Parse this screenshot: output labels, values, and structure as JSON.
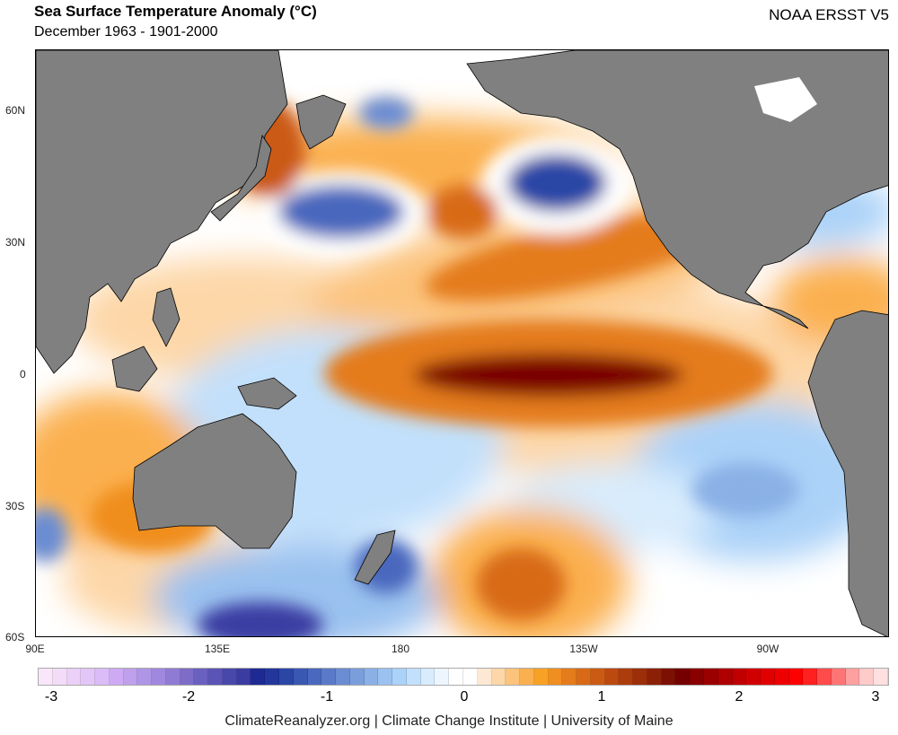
{
  "header": {
    "title": "Sea Surface Temperature Anomaly (°C)",
    "subtitle": "December 1963 - 1901-2000",
    "dataset": "NOAA ERSST V5"
  },
  "map": {
    "lat_labels": [
      "60N",
      "30N",
      "0",
      "30S",
      "60S"
    ],
    "lon_labels": [
      "90E",
      "135E",
      "180",
      "135W",
      "90W"
    ],
    "land_color": "#808080"
  },
  "colorbar": {
    "min": -3,
    "max": 3,
    "step": 0.1,
    "tick_labels": [
      "-3",
      "-2",
      "-1",
      "0",
      "1",
      "2",
      "3"
    ],
    "colors": [
      "#f9e6fa",
      "#f3dcf8",
      "#ebd0f7",
      "#e3c6f8",
      "#dbbcf7",
      "#cfaaf4",
      "#bea0ec",
      "#ae95e6",
      "#9f88dd",
      "#8f7bd4",
      "#7d6dc8",
      "#6a60bf",
      "#5a54b6",
      "#4848ab",
      "#3a3ca2",
      "#1e2a94",
      "#22369b",
      "#2c46a6",
      "#3a57b2",
      "#4a68bd",
      "#5a7ac8",
      "#6a8cd2",
      "#7a9edc",
      "#8ab0e6",
      "#9ac1ef",
      "#abd2f8",
      "#c2e0fb",
      "#d8ecfd",
      "#edf6ff",
      "#ffffff",
      "#ffffff",
      "#fde9d3",
      "#fdd7a8",
      "#fcc37d",
      "#fbb050",
      "#f9a124",
      "#f08e1f",
      "#e47c1b",
      "#d86a17",
      "#cb5a13",
      "#bc4a10",
      "#ac3c0c",
      "#9c2e09",
      "#8c2006",
      "#7c1003",
      "#750000",
      "#880000",
      "#9b0000",
      "#ae0000",
      "#c00000",
      "#d10000",
      "#e00000",
      "#ee0000",
      "#ff0000",
      "#ff2020",
      "#ff4b4b",
      "#ff7575",
      "#ffa0a0",
      "#ffcaca",
      "#ffe0e0"
    ]
  },
  "footer": "ClimateReanalyzer.org | Climate Change Institute | University of Maine"
}
